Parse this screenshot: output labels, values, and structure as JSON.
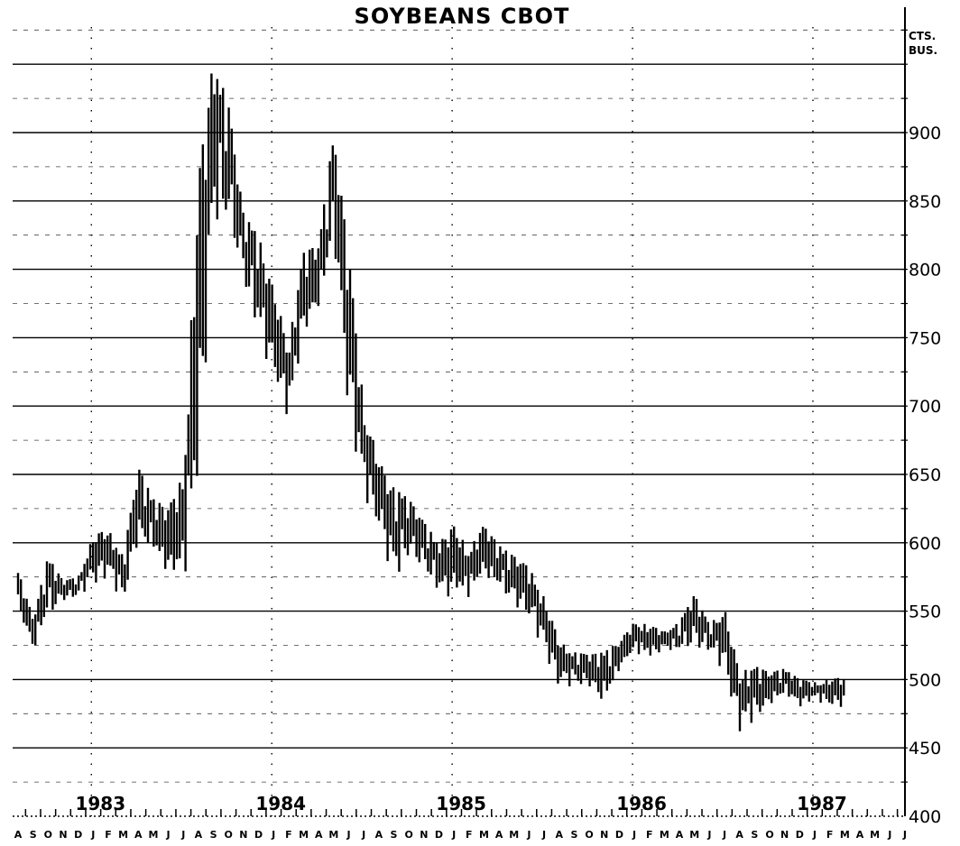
{
  "chart_data": {
    "type": "bar",
    "style": "high-low price bars",
    "title": "SOYBEANS      CBOT",
    "unit_line1": "CTS.",
    "unit_line2": "BUS.",
    "y_axis_side": "right",
    "ylim": [
      400,
      980
    ],
    "ytick_values": [
      400,
      450,
      500,
      550,
      600,
      650,
      700,
      750,
      800,
      850,
      900
    ],
    "ytick_labels": [
      "400",
      "450",
      "500",
      "550",
      "600",
      "650",
      "700",
      "750",
      "800",
      "850",
      "900"
    ],
    "gridlines": "solid every 50 cents, dashed every 25 cents",
    "x_start": "1982-08",
    "month_labels": "ASONDJFMAMJJASONDJFMAMJJASONDJFMAMJJASONDJFMAMJJASONDJFMAMJJ",
    "year_labels": [
      "1983",
      "1984",
      "1985",
      "1986",
      "1987"
    ],
    "year_label_months": [
      "1983-01",
      "1984-01",
      "1985-01",
      "1986-01",
      "1987-01"
    ],
    "series": [
      {
        "month": [
          "1982-08",
          "1982-09",
          "1982-10",
          "1982-11",
          "1982-12",
          "1983-01",
          "1983-02",
          "1983-03",
          "1983-04",
          "1983-05",
          "1983-06",
          "1983-07",
          "1983-08",
          "1983-09",
          "1983-10",
          "1983-11",
          "1983-12",
          "1984-01",
          "1984-02",
          "1984-03",
          "1984-04",
          "1984-05",
          "1984-06",
          "1984-07",
          "1984-08",
          "1984-09",
          "1984-10",
          "1984-11",
          "1984-12",
          "1985-01",
          "1985-02",
          "1985-03",
          "1985-04",
          "1985-05",
          "1985-06",
          "1985-07",
          "1985-08",
          "1985-09",
          "1985-10",
          "1985-11",
          "1985-12",
          "1986-01",
          "1986-02",
          "1986-03",
          "1986-04",
          "1986-05",
          "1986-06",
          "1986-07",
          "1986-08",
          "1986-09",
          "1986-10",
          "1986-11",
          "1986-12",
          "1987-01",
          "1987-02",
          "1987-03"
        ],
        "high": [
          580,
          545,
          590,
          572,
          575,
          605,
          610,
          590,
          655,
          632,
          625,
          650,
          865,
          955,
          920,
          840,
          825,
          785,
          745,
          812,
          818,
          900,
          810,
          700,
          660,
          640,
          632,
          615,
          600,
          612,
          595,
          613,
          598,
          590,
          582,
          560,
          528,
          520,
          518,
          520,
          528,
          542,
          540,
          535,
          542,
          562,
          540,
          552,
          505,
          510,
          505,
          508,
          500,
          498,
          500,
          502
        ],
        "low": [
          550,
          520,
          545,
          558,
          560,
          570,
          575,
          555,
          600,
          592,
          575,
          570,
          635,
          835,
          835,
          795,
          750,
          720,
          690,
          752,
          768,
          820,
          695,
          635,
          610,
          570,
          592,
          580,
          562,
          560,
          560,
          575,
          565,
          555,
          545,
          520,
          495,
          495,
          495,
          480,
          505,
          520,
          515,
          522,
          520,
          525,
          520,
          505,
          462,
          470,
          480,
          488,
          480,
          485,
          480,
          480
        ]
      }
    ]
  }
}
